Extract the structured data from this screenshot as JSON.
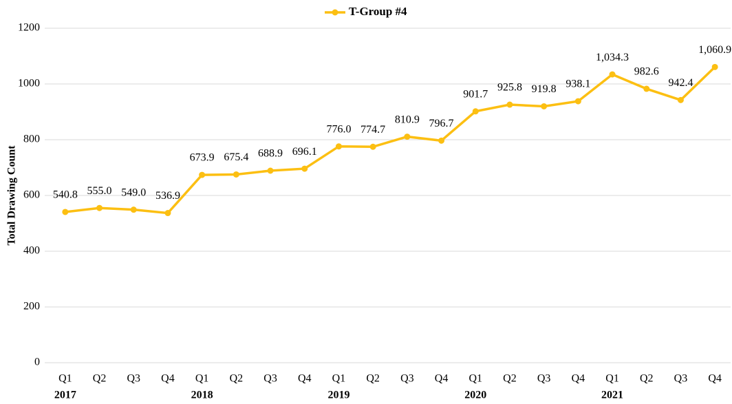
{
  "chart_data": {
    "type": "line",
    "y_label": "Total Drawing Count",
    "categories": [
      "Q1",
      "Q2",
      "Q3",
      "Q4",
      "Q1",
      "Q2",
      "Q3",
      "Q4",
      "Q1",
      "Q2",
      "Q3",
      "Q4",
      "Q1",
      "Q2",
      "Q3",
      "Q4",
      "Q1",
      "Q2",
      "Q3",
      "Q4"
    ],
    "year_groups": [
      "2017",
      "2018",
      "2019",
      "2020",
      "2021"
    ],
    "series": [
      {
        "name": "T-Group #4",
        "color": "#fcbf12",
        "values": [
          540.8,
          555.0,
          549.0,
          536.9,
          673.9,
          675.4,
          688.9,
          696.1,
          776.0,
          774.7,
          810.9,
          796.7,
          901.7,
          925.8,
          919.8,
          938.1,
          1034.3,
          982.6,
          942.4,
          1060.9
        ],
        "value_labels": [
          "540.8",
          "555.0",
          "549.0",
          "536.9",
          "673.9",
          "675.4",
          "688.9",
          "696.1",
          "776.0",
          "774.7",
          "810.9",
          "796.7",
          "901.7",
          "925.8",
          "919.8",
          "938.1",
          "1,034.3",
          "982.6",
          "942.4",
          "1,060.9"
        ]
      }
    ],
    "ylim": [
      0,
      1200
    ],
    "yticks": [
      0,
      200,
      400,
      600,
      800,
      1000,
      1200
    ],
    "grid": true,
    "legend": "top"
  }
}
